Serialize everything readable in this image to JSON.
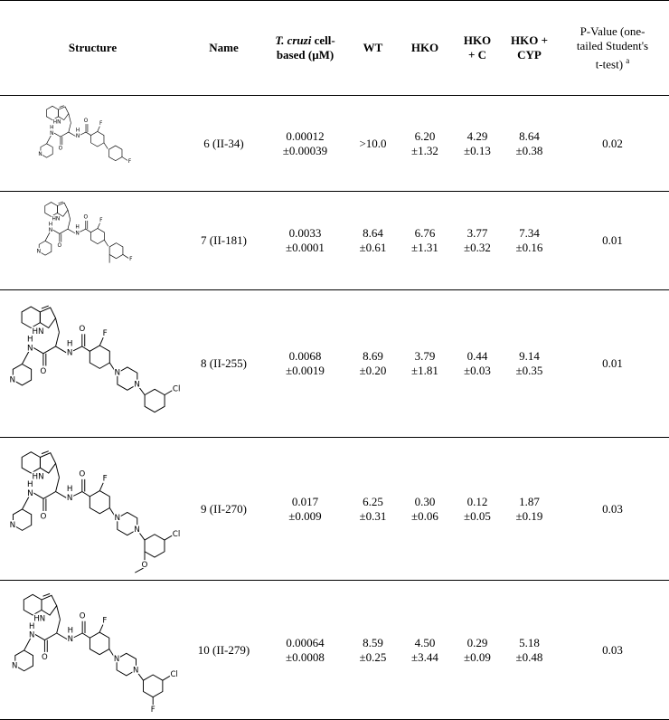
{
  "table": {
    "headers": {
      "structure": "Structure",
      "name": "Name",
      "tcruzi_italic": "T. cruzi",
      "tcruzi_rest": "cell-based (μM)",
      "wt": "WT",
      "hko": "HKO",
      "hkoc": "HKO + C",
      "hkocyp": "HKO + CYP",
      "pvalue": "P-Value (one-tailed Student's t-test)",
      "pvalue_note": "a"
    },
    "rows": [
      {
        "structure_labels": [
          "HN",
          "H",
          "N",
          "O",
          "N",
          "H",
          "O",
          "F",
          "N",
          "F"
        ],
        "name": "6 (II-34)",
        "values": [
          [
            "0.00012",
            "±0.00039"
          ],
          [
            ">10.0"
          ],
          [
            "6.20",
            "±1.32"
          ],
          [
            "4.29",
            "±0.13"
          ],
          [
            "8.64",
            "±0.38"
          ]
        ],
        "p": "0.02"
      },
      {
        "structure_labels": [
          "HN",
          "H",
          "N",
          "O",
          "N",
          "H",
          "O",
          "F",
          "N",
          "F"
        ],
        "name": "7 (II-181)",
        "values": [
          [
            "0.0033",
            "±0.0001"
          ],
          [
            "8.64",
            "±0.61"
          ],
          [
            "6.76",
            "±1.31"
          ],
          [
            "3.77",
            "±0.32"
          ],
          [
            "7.34",
            "±0.16"
          ]
        ],
        "p": "0.01"
      },
      {
        "structure_labels": [
          "HN",
          "H",
          "N",
          "O",
          "N",
          "H",
          "O",
          "F",
          "N",
          "N",
          "N",
          "Cl"
        ],
        "name": "8 (II-255)",
        "values": [
          [
            "0.0068",
            "±0.0019"
          ],
          [
            "8.69",
            "±0.20"
          ],
          [
            "3.79",
            "±1.81"
          ],
          [
            "0.44",
            "±0.03"
          ],
          [
            "9.14",
            "±0.35"
          ]
        ],
        "p": "0.01"
      },
      {
        "structure_labels": [
          "HN",
          "H",
          "N",
          "O",
          "N",
          "H",
          "O",
          "F",
          "N",
          "N",
          "N",
          "Cl",
          "O"
        ],
        "name": "9 (II-270)",
        "values": [
          [
            "0.017",
            "±0.009"
          ],
          [
            "6.25",
            "±0.31"
          ],
          [
            "0.30",
            "±0.06"
          ],
          [
            "0.12",
            "±0.05"
          ],
          [
            "1.87",
            "±0.19"
          ]
        ],
        "p": "0.03"
      },
      {
        "structure_labels": [
          "HN",
          "H",
          "N",
          "O",
          "N",
          "H",
          "O",
          "F",
          "N",
          "N",
          "N",
          "Cl",
          "F"
        ],
        "name": "10 (II-279)",
        "values": [
          [
            "0.00064",
            "±0.0008"
          ],
          [
            "8.59",
            "±0.25"
          ],
          [
            "4.50",
            "±3.44"
          ],
          [
            "0.29",
            "±0.09"
          ],
          [
            "5.18",
            "±0.48"
          ]
        ],
        "p": "0.03"
      }
    ]
  }
}
